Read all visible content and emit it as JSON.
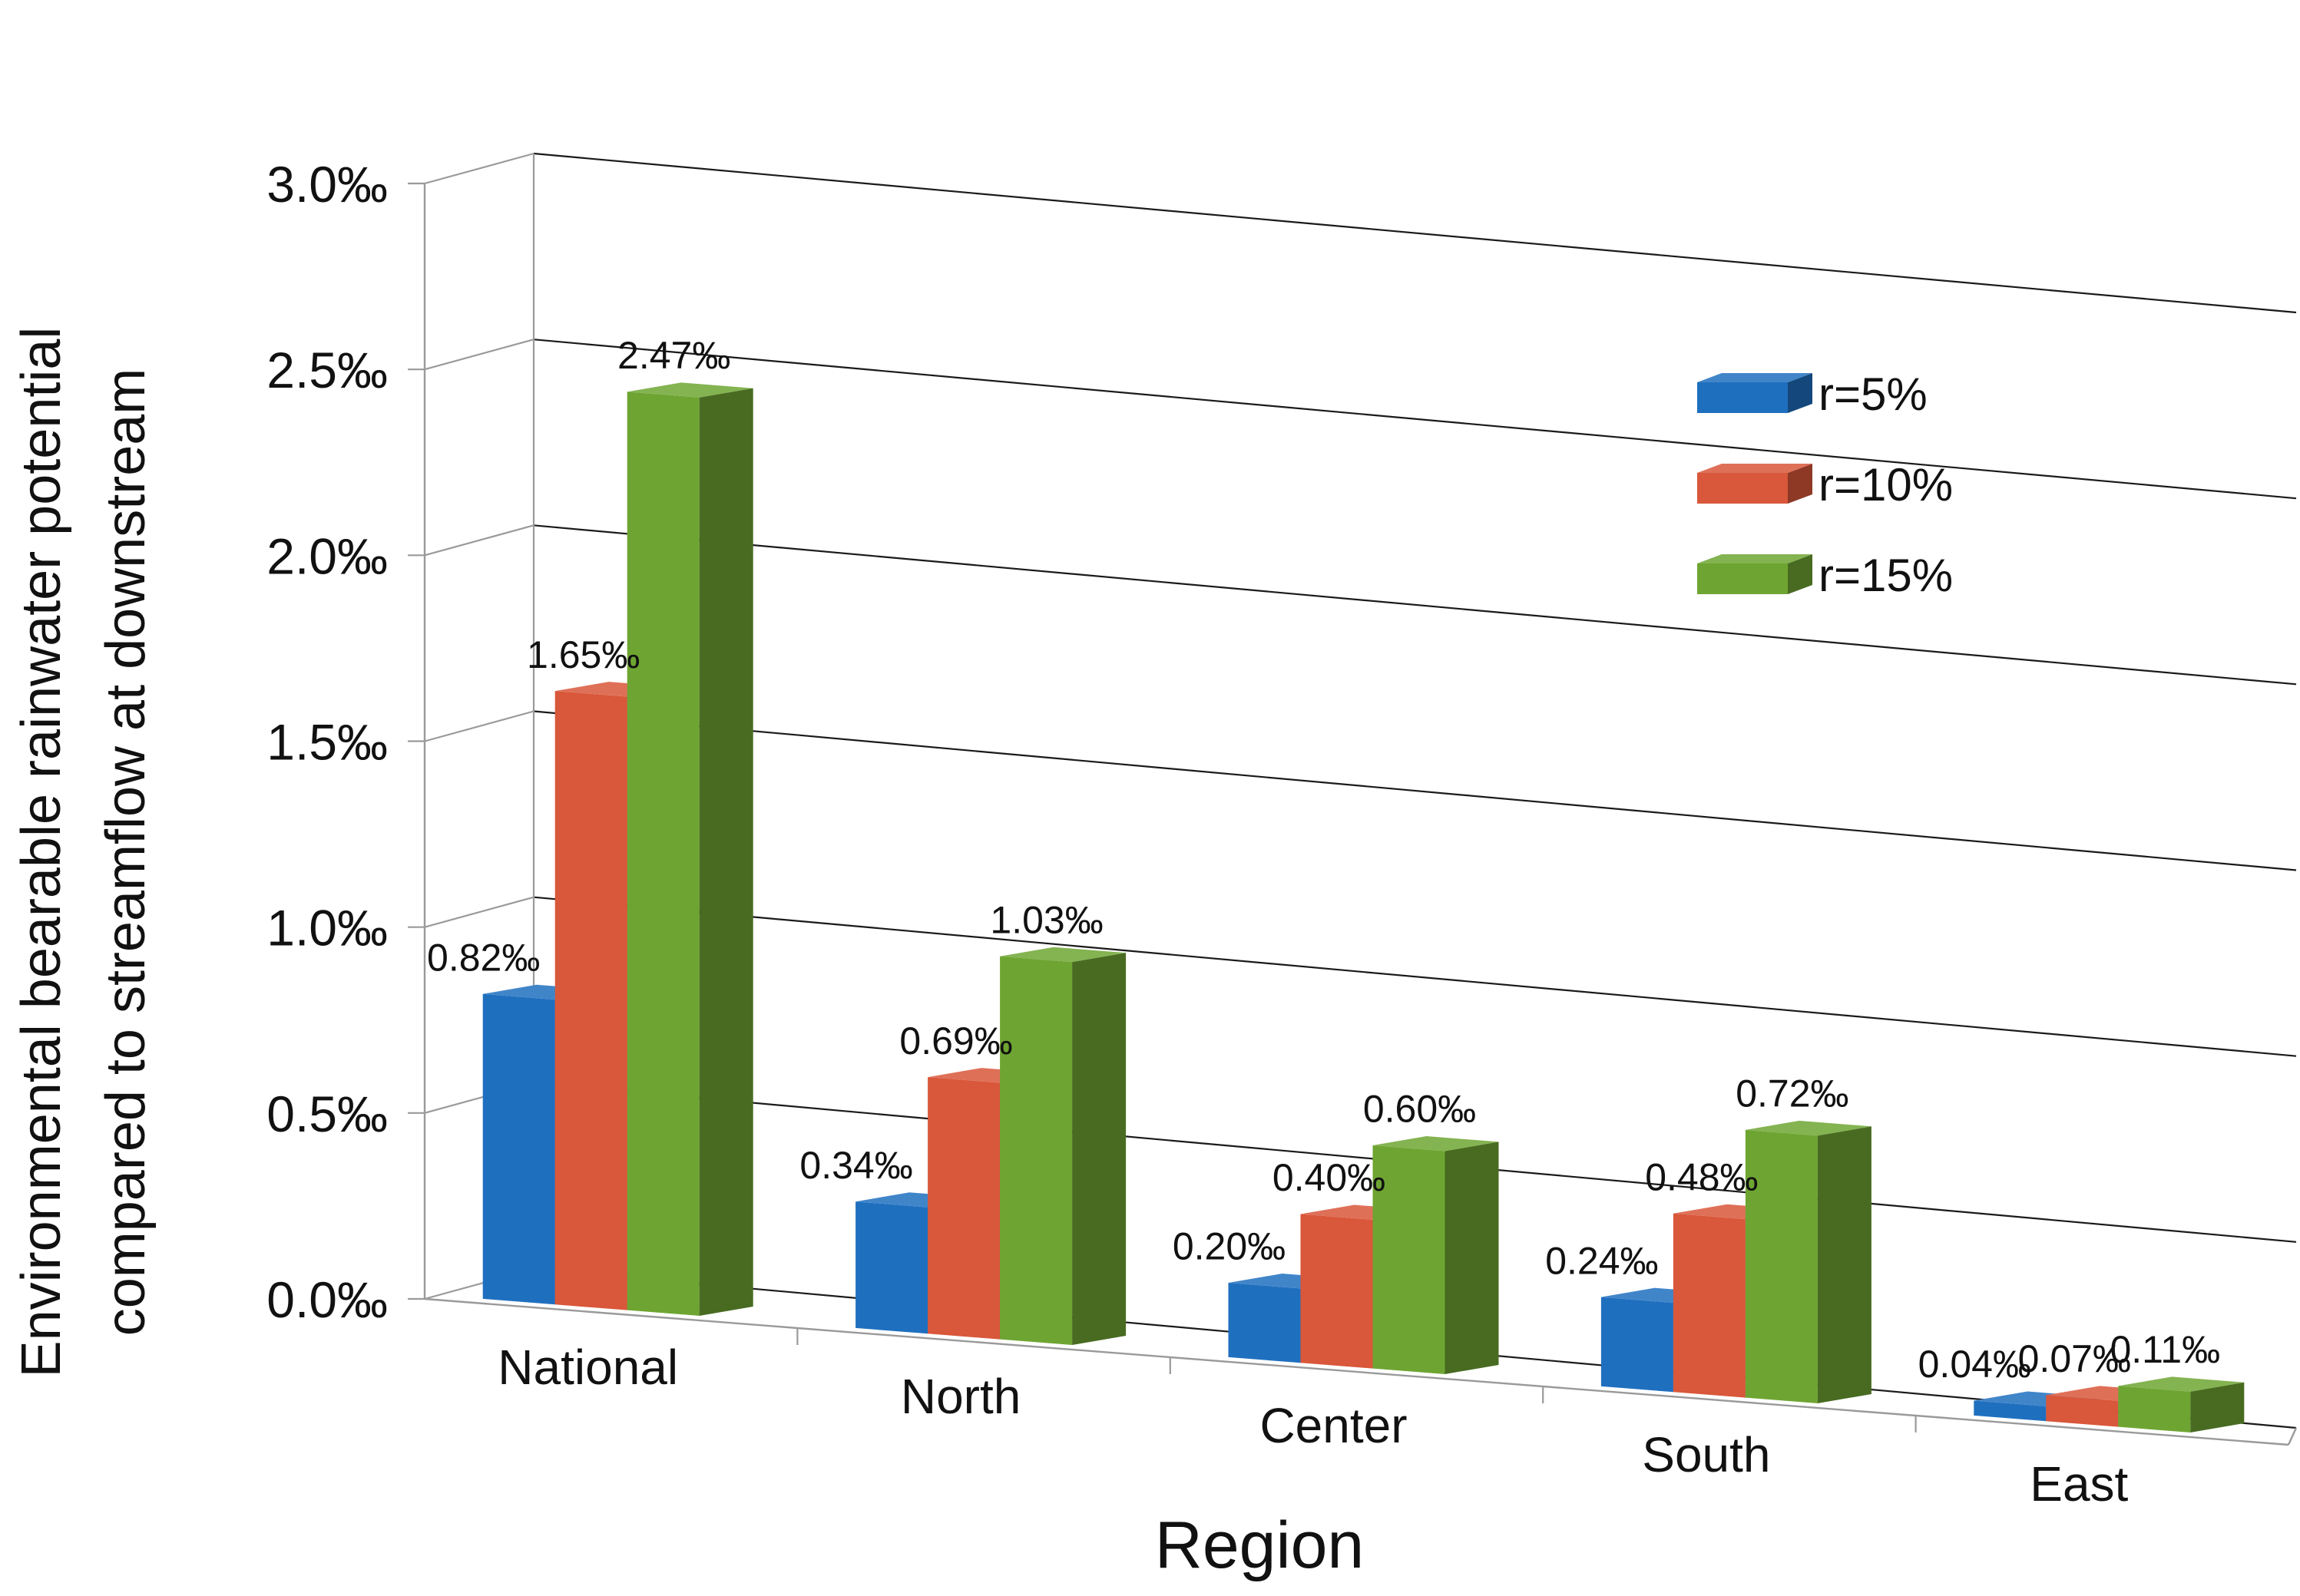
{
  "chart_data": {
    "type": "bar",
    "style": "3d-clustered",
    "title": "",
    "xlabel": "Region",
    "ylabel_lines": [
      "Environmental bearable rainwater potential",
      "compared to streamflow at downstream"
    ],
    "ylim": [
      0,
      3.0
    ],
    "unit": "‰",
    "yticks": [
      {
        "value": 0.0,
        "label": "0.0‰"
      },
      {
        "value": 0.5,
        "label": "0.5‰"
      },
      {
        "value": 1.0,
        "label": "1.0‰"
      },
      {
        "value": 1.5,
        "label": "1.5‰"
      },
      {
        "value": 2.0,
        "label": "2.0‰"
      },
      {
        "value": 2.5,
        "label": "2.5‰"
      },
      {
        "value": 3.0,
        "label": "3.0‰"
      }
    ],
    "grid": true,
    "legend_position": "top-right",
    "categories": [
      "National",
      "North",
      "Center",
      "South",
      "East"
    ],
    "series": [
      {
        "name": "r=5%",
        "color": "#1f6fbf",
        "values": [
          0.82,
          0.34,
          0.2,
          0.24,
          0.04
        ],
        "labels": [
          "0.82‰",
          "0.34‰",
          "0.20‰",
          "0.24‰",
          "0.04‰"
        ]
      },
      {
        "name": "r=10%",
        "color": "#d9573a",
        "values": [
          1.65,
          0.69,
          0.4,
          0.48,
          0.07
        ],
        "labels": [
          "1.65‰",
          "0.69‰",
          "0.40‰",
          "0.48‰",
          "0.07‰"
        ]
      },
      {
        "name": "r=15%",
        "color": "#6ea532",
        "values": [
          2.47,
          1.03,
          0.6,
          0.72,
          0.11
        ],
        "labels": [
          "2.47‰",
          "1.03‰",
          "0.60‰",
          "0.72‰",
          "0.11‰"
        ]
      }
    ]
  }
}
